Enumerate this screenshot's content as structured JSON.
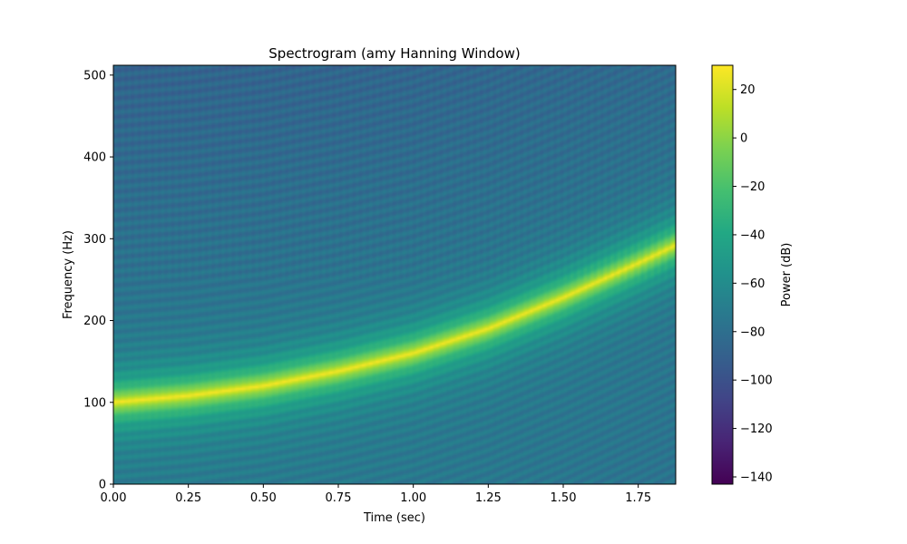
{
  "chart_data": {
    "type": "heatmap",
    "title": "Spectrogram (amy Hanning Window)",
    "xlabel": "Time (sec)",
    "ylabel": "Frequency (Hz)",
    "xlim": [
      0,
      1.875
    ],
    "ylim": [
      0,
      512
    ],
    "x_ticks": [
      0.0,
      0.25,
      0.5,
      0.75,
      1.0,
      1.25,
      1.5,
      1.75
    ],
    "x_tick_labels": [
      "0.00",
      "0.25",
      "0.50",
      "0.75",
      "1.00",
      "1.25",
      "1.50",
      "1.75"
    ],
    "y_ticks": [
      0,
      100,
      200,
      300,
      400,
      500
    ],
    "y_tick_labels": [
      "0",
      "100",
      "200",
      "300",
      "400",
      "500"
    ],
    "colormap": "viridis",
    "ridge": {
      "description": "chirp",
      "time": [
        0.0,
        0.25,
        0.5,
        0.75,
        1.0,
        1.25,
        1.5,
        1.75,
        1.875
      ],
      "frequency": [
        100,
        108,
        120,
        138,
        160,
        190,
        228,
        270,
        292
      ]
    },
    "peak_db": 30,
    "background_db": -80,
    "colorbar": {
      "label": "Power (dB)",
      "range": [
        -143,
        30
      ],
      "ticks": [
        20,
        0,
        -20,
        -40,
        -60,
        -80,
        -100,
        -120,
        -140
      ],
      "tick_labels": [
        "20",
        "0",
        "−20",
        "−40",
        "−60",
        "−80",
        "−100",
        "−120",
        "−140"
      ]
    },
    "grid": false
  }
}
